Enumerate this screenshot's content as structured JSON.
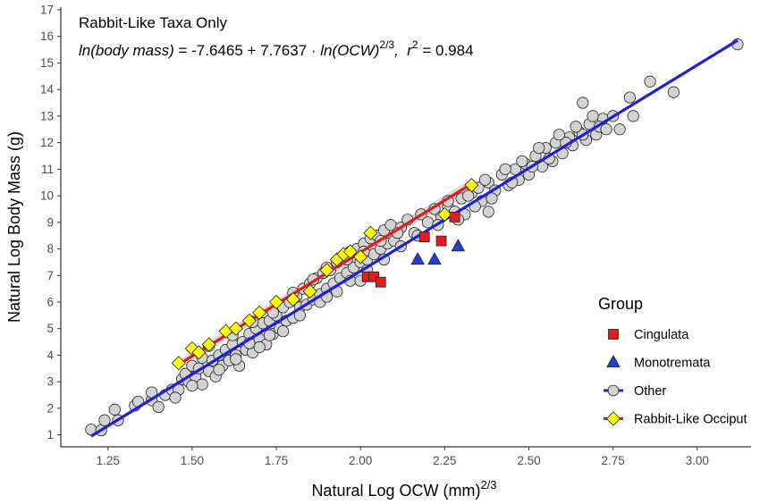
{
  "chart_data": {
    "type": "scatter",
    "annotation": {
      "title": "Rabbit-Like Taxa Only",
      "eq_lhs": "ln(body mass)",
      "eq_rhs_a": " = -7.6465 + 7.7637 · ",
      "eq_ln": "ln(OCW)",
      "eq_exp": "2/3",
      "eq_r": ",  r",
      "eq_r_exp": "2",
      "eq_r_val": " = 0.984"
    },
    "xlabel": "Natural Log OCW (mm)",
    "xlabel_sup": "2/3",
    "ylabel": "Natural Log Body Mass (g)",
    "xlim": [
      1.11,
      3.16
    ],
    "ylim": [
      0.55,
      17.1
    ],
    "x_ticks": [
      1.25,
      1.5,
      1.75,
      2.0,
      2.25,
      2.5,
      2.75,
      3.0
    ],
    "x_tick_labels": [
      "1.25",
      "1.50",
      "1.75",
      "2.00",
      "2.25",
      "2.50",
      "2.75",
      "3.00"
    ],
    "y_ticks": [
      1,
      2,
      3,
      4,
      5,
      6,
      7,
      8,
      9,
      10,
      11,
      12,
      13,
      14,
      15,
      16,
      17
    ],
    "y_tick_labels": [
      "1",
      "2",
      "3",
      "4",
      "5",
      "6",
      "7",
      "8",
      "9",
      "10",
      "11",
      "12",
      "13",
      "14",
      "15",
      "16",
      "17"
    ],
    "legend": {
      "title": "Group",
      "position": "right",
      "items": [
        {
          "key": "cingulata",
          "label": "Cingulata",
          "shape": "square",
          "fill": "#e41a1c"
        },
        {
          "key": "monotremata",
          "label": "Monotremata",
          "shape": "triangle",
          "fill": "#1f3fd6"
        },
        {
          "key": "other",
          "label": "Other",
          "shape": "circle",
          "fill": "#d3d3d3",
          "line": "#1f1fd6"
        },
        {
          "key": "rabbit",
          "label": "Rabbit-Like Occiput",
          "shape": "diamond",
          "fill": "#ffff00",
          "line": "#e41a1c"
        }
      ]
    },
    "series": [
      {
        "name": "Other",
        "marker": "circle",
        "fill": "#d3d3d3",
        "points": [
          [
            1.2,
            1.2
          ],
          [
            1.23,
            1.17
          ],
          [
            1.24,
            1.55
          ],
          [
            1.28,
            1.55
          ],
          [
            1.33,
            2.1
          ],
          [
            1.34,
            2.25
          ],
          [
            1.38,
            2.3
          ],
          [
            1.38,
            2.6
          ],
          [
            1.4,
            2.05
          ],
          [
            1.42,
            2.5
          ],
          [
            1.44,
            2.7
          ],
          [
            1.46,
            2.7
          ],
          [
            1.47,
            3.1
          ],
          [
            1.48,
            3.3
          ],
          [
            1.49,
            3.0
          ],
          [
            1.5,
            3.6
          ],
          [
            1.51,
            3.2
          ],
          [
            1.52,
            3.5
          ],
          [
            1.53,
            3.9
          ],
          [
            1.53,
            2.9
          ],
          [
            1.55,
            3.4
          ],
          [
            1.56,
            3.8
          ],
          [
            1.57,
            3.2
          ],
          [
            1.58,
            4.0
          ],
          [
            1.59,
            3.6
          ],
          [
            1.6,
            4.2
          ],
          [
            1.61,
            3.8
          ],
          [
            1.62,
            4.4
          ],
          [
            1.63,
            4.0
          ],
          [
            1.64,
            3.6
          ],
          [
            1.65,
            4.5
          ],
          [
            1.66,
            4.2
          ],
          [
            1.67,
            4.8
          ],
          [
            1.68,
            4.1
          ],
          [
            1.69,
            5.0
          ],
          [
            1.7,
            4.6
          ],
          [
            1.71,
            5.2
          ],
          [
            1.72,
            4.4
          ],
          [
            1.73,
            5.3
          ],
          [
            1.74,
            4.8
          ],
          [
            1.75,
            5.5
          ],
          [
            1.76,
            5.0
          ],
          [
            1.77,
            5.8
          ],
          [
            1.78,
            5.3
          ],
          [
            1.79,
            6.0
          ],
          [
            1.8,
            5.4
          ],
          [
            1.81,
            6.2
          ],
          [
            1.82,
            5.8
          ],
          [
            1.83,
            6.5
          ],
          [
            1.84,
            5.9
          ],
          [
            1.85,
            6.7
          ],
          [
            1.86,
            6.1
          ],
          [
            1.87,
            6.9
          ],
          [
            1.88,
            6.3
          ],
          [
            1.89,
            7.1
          ],
          [
            1.9,
            6.5
          ],
          [
            1.91,
            7.2
          ],
          [
            1.92,
            6.7
          ],
          [
            1.93,
            7.5
          ],
          [
            1.94,
            6.9
          ],
          [
            1.95,
            7.7
          ],
          [
            1.96,
            7.1
          ],
          [
            1.97,
            7.9
          ],
          [
            1.98,
            7.3
          ],
          [
            1.99,
            8.0
          ],
          [
            2.0,
            7.5
          ],
          [
            2.01,
            8.2
          ],
          [
            2.02,
            7.6
          ],
          [
            2.03,
            8.4
          ],
          [
            2.04,
            7.8
          ],
          [
            2.05,
            8.5
          ],
          [
            2.06,
            8.0
          ],
          [
            2.07,
            8.7
          ],
          [
            2.08,
            8.2
          ],
          [
            2.09,
            8.9
          ],
          [
            2.1,
            8.3
          ],
          [
            2.12,
            8.8
          ],
          [
            2.14,
            9.1
          ],
          [
            2.16,
            8.6
          ],
          [
            2.18,
            9.3
          ],
          [
            2.2,
            9.0
          ],
          [
            2.22,
            9.5
          ],
          [
            2.24,
            9.2
          ],
          [
            2.26,
            9.6
          ],
          [
            2.28,
            9.4
          ],
          [
            2.3,
            9.9
          ],
          [
            2.31,
            9.3
          ],
          [
            2.33,
            10.1
          ],
          [
            2.35,
            10.3
          ],
          [
            2.36,
            9.8
          ],
          [
            2.38,
            10.5
          ],
          [
            2.4,
            10.2
          ],
          [
            2.42,
            10.8
          ],
          [
            2.44,
            10.4
          ],
          [
            2.46,
            11.0
          ],
          [
            2.47,
            10.6
          ],
          [
            2.49,
            11.2
          ],
          [
            2.5,
            10.8
          ],
          [
            2.52,
            11.5
          ],
          [
            2.54,
            11.1
          ],
          [
            2.55,
            11.8
          ],
          [
            2.57,
            11.3
          ],
          [
            2.58,
            12.0
          ],
          [
            2.6,
            11.6
          ],
          [
            2.62,
            12.2
          ],
          [
            2.63,
            11.9
          ],
          [
            2.65,
            12.4
          ],
          [
            2.67,
            12.1
          ],
          [
            2.68,
            12.7
          ],
          [
            2.7,
            12.3
          ],
          [
            2.72,
            12.9
          ],
          [
            2.75,
            13.0
          ],
          [
            2.8,
            13.7
          ],
          [
            2.81,
            13.0
          ],
          [
            2.86,
            14.3
          ],
          [
            2.93,
            13.9
          ],
          [
            3.12,
            15.7
          ],
          [
            1.27,
            1.95
          ],
          [
            1.45,
            2.4
          ],
          [
            1.5,
            2.85
          ],
          [
            1.58,
            3.45
          ],
          [
            1.63,
            3.85
          ],
          [
            1.7,
            4.3
          ],
          [
            1.77,
            4.9
          ],
          [
            1.82,
            5.5
          ],
          [
            1.88,
            6.0
          ],
          [
            1.93,
            6.4
          ],
          [
            1.97,
            6.8
          ],
          [
            2.02,
            7.2
          ],
          [
            2.07,
            7.6
          ],
          [
            2.12,
            8.1
          ],
          [
            2.17,
            8.5
          ],
          [
            2.23,
            8.9
          ],
          [
            2.29,
            9.1
          ],
          [
            2.34,
            9.6
          ],
          [
            2.39,
            9.9
          ],
          [
            2.45,
            10.5
          ],
          [
            2.51,
            11.1
          ],
          [
            2.56,
            11.4
          ],
          [
            2.61,
            12.0
          ],
          [
            2.66,
            12.3
          ],
          [
            2.71,
            12.6
          ],
          [
            1.55,
            4.35
          ],
          [
            1.62,
            4.75
          ],
          [
            1.68,
            5.25
          ],
          [
            1.74,
            5.6
          ],
          [
            1.8,
            6.35
          ],
          [
            1.86,
            6.85
          ],
          [
            1.9,
            7.3
          ],
          [
            1.96,
            7.6
          ],
          [
            2.01,
            7.9
          ],
          [
            2.06,
            8.3
          ],
          [
            2.11,
            8.6
          ],
          [
            2.26,
            9.8
          ],
          [
            2.32,
            10.0
          ],
          [
            2.37,
            10.6
          ],
          [
            2.43,
            11.0
          ],
          [
            2.48,
            11.3
          ],
          [
            2.53,
            11.8
          ],
          [
            2.59,
            12.3
          ],
          [
            2.64,
            12.6
          ],
          [
            2.69,
            13.0
          ],
          [
            2.73,
            12.5
          ],
          [
            2.77,
            12.5
          ],
          [
            2.38,
            9.4
          ],
          [
            2.66,
            13.5
          ],
          [
            1.67,
            4.45
          ],
          [
            1.73,
            4.75
          ],
          [
            1.9,
            6.2
          ],
          [
            2.0,
            6.8
          ]
        ]
      },
      {
        "name": "Rabbit-Like Occiput",
        "marker": "diamond",
        "fill": "#ffff00",
        "points": [
          [
            1.46,
            3.7
          ],
          [
            1.5,
            4.25
          ],
          [
            1.52,
            4.1
          ],
          [
            1.55,
            4.4
          ],
          [
            1.6,
            4.9
          ],
          [
            1.63,
            5.0
          ],
          [
            1.67,
            5.3
          ],
          [
            1.7,
            5.6
          ],
          [
            1.75,
            6.0
          ],
          [
            1.8,
            6.1
          ],
          [
            1.85,
            6.4
          ],
          [
            1.9,
            7.2
          ],
          [
            1.93,
            7.6
          ],
          [
            1.95,
            7.8
          ],
          [
            1.97,
            7.9
          ],
          [
            2.0,
            7.7
          ],
          [
            2.03,
            8.6
          ],
          [
            2.25,
            9.3
          ],
          [
            2.33,
            10.4
          ]
        ]
      },
      {
        "name": "Cingulata",
        "marker": "square",
        "fill": "#e41a1c",
        "points": [
          [
            2.02,
            6.95
          ],
          [
            2.04,
            6.95
          ],
          [
            2.06,
            6.75
          ],
          [
            2.19,
            8.45
          ],
          [
            2.24,
            8.3
          ],
          [
            2.28,
            9.2
          ]
        ]
      },
      {
        "name": "Monotremata",
        "marker": "triangle",
        "fill": "#1f3fd6",
        "points": [
          [
            2.17,
            7.6
          ],
          [
            2.22,
            7.6
          ],
          [
            2.29,
            8.1
          ]
        ]
      }
    ],
    "fit_lines": [
      {
        "name": "Other",
        "color": "#1f1fd6",
        "x": [
          1.2,
          3.12
        ],
        "y": [
          0.95,
          15.85
        ]
      },
      {
        "name": "Rabbit-Like Occiput",
        "color": "#e41a1c",
        "x": [
          1.46,
          2.33
        ],
        "y": [
          3.65,
          10.45
        ]
      }
    ]
  }
}
